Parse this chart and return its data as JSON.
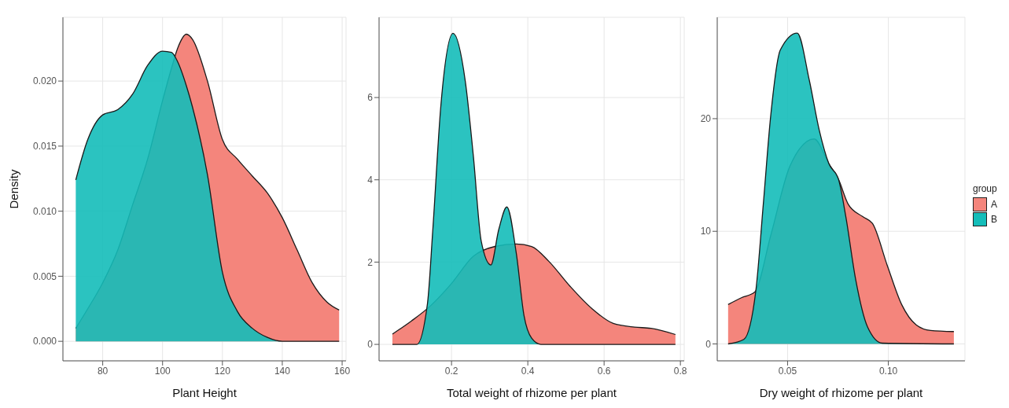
{
  "chart_data": [
    {
      "type": "area",
      "xlabel": "Plant Height",
      "ylabel": "Density",
      "grid": true,
      "xlim": [
        66.7,
        161.3
      ],
      "ylim": [
        -0.0015,
        0.0249
      ],
      "xticks": [
        80,
        100,
        120,
        140,
        160
      ],
      "yticks": [
        {
          "value": 0,
          "label": "0.000"
        },
        {
          "value": 0.005,
          "label": "0.005"
        },
        {
          "value": 0.01,
          "label": "0.010"
        },
        {
          "value": 0.015,
          "label": "0.015"
        },
        {
          "value": 0.02,
          "label": "0.020"
        }
      ],
      "series": [
        {
          "color": "#f4857c",
          "x": [
            71,
            75,
            80,
            85,
            90,
            95,
            100,
            103,
            105,
            108,
            110,
            115,
            120,
            125,
            130,
            135,
            140,
            145,
            150,
            155,
            159
          ],
          "values": [
            0.001,
            0.0025,
            0.0045,
            0.007,
            0.0105,
            0.014,
            0.0185,
            0.021,
            0.0225,
            0.0236,
            0.0232,
            0.02,
            0.0155,
            0.014,
            0.0127,
            0.0114,
            0.0095,
            0.007,
            0.0045,
            0.003,
            0.0024
          ]
        },
        {
          "color": "#14bdb9",
          "x": [
            71,
            75,
            80,
            85,
            90,
            95,
            100,
            103,
            105,
            108,
            110,
            115,
            120,
            125,
            130,
            135,
            140,
            150,
            159
          ],
          "values": [
            0.0124,
            0.0155,
            0.0174,
            0.0178,
            0.019,
            0.0212,
            0.0223,
            0.0222,
            0.0215,
            0.0196,
            0.018,
            0.0128,
            0.0053,
            0.0023,
            0.001,
            0.0003,
            0,
            0,
            0
          ]
        }
      ]
    },
    {
      "type": "area",
      "xlabel": "Total weight of rhizome per plant",
      "grid": true,
      "xlim": [
        0.01,
        0.81
      ],
      "ylim": [
        -0.4,
        7.95
      ],
      "xticks": [
        0.2,
        0.4,
        0.6,
        0.8
      ],
      "yticks": [
        0,
        2,
        4,
        6
      ],
      "series": [
        {
          "color": "#f4857c",
          "x": [
            0.045,
            0.095,
            0.144,
            0.2,
            0.257,
            0.314,
            0.37,
            0.41,
            0.455,
            0.51,
            0.568,
            0.624,
            0.68,
            0.723,
            0.787
          ],
          "values": [
            0.25,
            0.57,
            0.93,
            1.48,
            2.14,
            2.38,
            2.44,
            2.38,
            2.02,
            1.42,
            0.87,
            0.51,
            0.42,
            0.39,
            0.24
          ]
        },
        {
          "color": "#14bdb9",
          "x": [
            0.045,
            0.109,
            0.137,
            0.151,
            0.172,
            0.204,
            0.236,
            0.257,
            0.278,
            0.303,
            0.324,
            0.345,
            0.37,
            0.39,
            0.41,
            0.434,
            0.787
          ],
          "values": [
            0,
            0,
            1.0,
            2.8,
            5.8,
            7.56,
            6.4,
            4.6,
            2.5,
            1.93,
            2.8,
            3.34,
            2.2,
            0.7,
            0.15,
            0,
            0
          ]
        }
      ]
    },
    {
      "type": "area",
      "xlabel": "Dry weight of rhizome per plant",
      "grid": true,
      "legend": "right",
      "legend_title": "group",
      "xlim": [
        0.0151,
        0.138
      ],
      "ylim": [
        -1.5,
        29
      ],
      "xticks": [
        0.05,
        {
          "value": 0.1,
          "label": "0.10"
        }
      ],
      "yticks": [
        0,
        10,
        20
      ],
      "series": [
        {
          "name": "A",
          "color": "#f4857c",
          "x": [
            0.0205,
            0.0271,
            0.0337,
            0.0416,
            0.0512,
            0.0632,
            0.0705,
            0.0753,
            0.0801,
            0.0873,
            0.0921,
            0.0994,
            0.1066,
            0.1138,
            0.121,
            0.1325
          ],
          "values": [
            3.5,
            4.1,
            4.6,
            9.6,
            15.8,
            18.2,
            16.0,
            14.6,
            12.4,
            11.3,
            10.7,
            7.0,
            3.5,
            1.7,
            1.2,
            1.1
          ]
        },
        {
          "name": "B",
          "color": "#14bdb9",
          "x": [
            0.0205,
            0.0283,
            0.0343,
            0.038,
            0.0416,
            0.0464,
            0.0548,
            0.0608,
            0.0657,
            0.0705,
            0.0753,
            0.0789,
            0.0837,
            0.0897,
            0.097,
            0.1325
          ],
          "values": [
            0,
            0.4,
            4.8,
            12.5,
            20.2,
            26.1,
            27.6,
            23.4,
            19.0,
            16.0,
            14.6,
            11.3,
            5.8,
            1.5,
            0.07,
            0
          ]
        }
      ]
    }
  ]
}
